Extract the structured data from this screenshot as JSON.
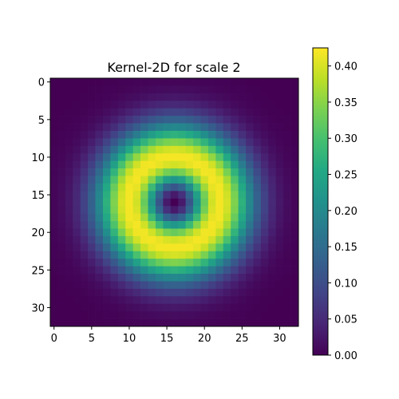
{
  "chart_data": {
    "type": "heatmap",
    "title": "Kernel-2D for scale 2",
    "grid_size": 33,
    "center": 16,
    "function": "ring-shaped radial kernel: value = 0.42 * (r/6)^2 * exp(1 - (r/6)^2), r = distance from center cell (16,16)",
    "peak_value": 0.42,
    "peak_radius": 6,
    "xlabel": "",
    "ylabel": "",
    "xlim": [
      -0.5,
      32.5
    ],
    "ylim": [
      32.5,
      -0.5
    ],
    "x_ticks": [
      0,
      5,
      10,
      15,
      20,
      25,
      30
    ],
    "y_ticks": [
      0,
      5,
      10,
      15,
      20,
      25,
      30
    ],
    "colormap": "viridis",
    "colorbar": {
      "min": 0.0,
      "max": 0.425,
      "ticks": [
        "0.00",
        "0.05",
        "0.10",
        "0.15",
        "0.20",
        "0.25",
        "0.30",
        "0.35",
        "0.40"
      ]
    },
    "grid": false
  }
}
